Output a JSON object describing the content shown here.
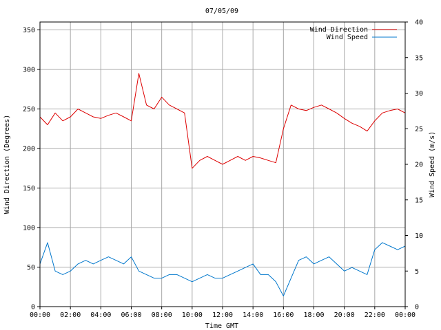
{
  "chart_data": {
    "type": "line",
    "title": "07/05/09",
    "xlabel": "Time GMT",
    "ylabel_left": "Wind Direction (Degrees)",
    "ylabel_right": "Wind Speed (m/s)",
    "x_ticks": [
      "00:00",
      "02:00",
      "04:00",
      "06:00",
      "08:00",
      "10:00",
      "12:00",
      "14:00",
      "16:00",
      "18:00",
      "20:00",
      "22:00",
      "00:00"
    ],
    "x_range_hours": [
      0,
      24
    ],
    "ylim_left": [
      0,
      360
    ],
    "ylim_right": [
      0,
      40
    ],
    "y_ticks_left": [
      "0",
      "50",
      "100",
      "150",
      "200",
      "250",
      "300",
      "350"
    ],
    "y_ticks_right": [
      "0",
      "5",
      "10",
      "15",
      "20",
      "25",
      "30",
      "35",
      "40"
    ],
    "grid": true,
    "legend_position": "top-right",
    "series": [
      {
        "name": "Wind Direction",
        "axis": "left",
        "color": "#dd0000",
        "x": [
          0,
          0.5,
          1,
          1.5,
          2,
          2.5,
          3,
          3.5,
          4,
          4.5,
          5,
          5.5,
          6,
          6.5,
          7,
          7.5,
          8,
          8.5,
          9,
          9.5,
          10,
          10.5,
          11,
          11.5,
          12,
          12.5,
          13,
          13.5,
          14,
          14.5,
          15,
          15.5,
          16,
          16.5,
          17,
          17.5,
          18,
          18.5,
          19,
          19.5,
          20,
          20.5,
          21,
          21.5,
          22,
          22.5,
          23,
          23.5,
          24
        ],
        "values": [
          240,
          230,
          245,
          235,
          240,
          250,
          245,
          240,
          238,
          242,
          245,
          240,
          235,
          295,
          255,
          250,
          265,
          255,
          250,
          245,
          175,
          185,
          190,
          185,
          180,
          185,
          190,
          185,
          190,
          188,
          185,
          182,
          225,
          255,
          250,
          248,
          252,
          255,
          250,
          245,
          238,
          232,
          228,
          222,
          235,
          245,
          248,
          250,
          245
        ]
      },
      {
        "name": "Wind Speed",
        "axis": "right",
        "color": "#0077cc",
        "x": [
          0,
          0.5,
          1,
          1.5,
          2,
          2.5,
          3,
          3.5,
          4,
          4.5,
          5,
          5.5,
          6,
          6.5,
          7,
          7.5,
          8,
          8.5,
          9,
          9.5,
          10,
          10.5,
          11,
          11.5,
          12,
          12.5,
          13,
          13.5,
          14,
          14.5,
          15,
          15.5,
          16,
          16.5,
          17,
          17.5,
          18,
          18.5,
          19,
          19.5,
          20,
          20.5,
          21,
          21.5,
          22,
          22.5,
          23,
          23.5,
          24
        ],
        "values": [
          6,
          9,
          5,
          4.5,
          5,
          6,
          6.5,
          6,
          6.5,
          7,
          6.5,
          6,
          7,
          5,
          4.5,
          4,
          4,
          4.5,
          4.5,
          4,
          3.5,
          4,
          4.5,
          4,
          4,
          4.5,
          5,
          5.5,
          6,
          4.5,
          4.5,
          3.5,
          1.5,
          4,
          6.5,
          7,
          6,
          6.5,
          7,
          6,
          5,
          5.5,
          5,
          4.5,
          8,
          9,
          8.5,
          8,
          8.5
        ]
      }
    ]
  }
}
